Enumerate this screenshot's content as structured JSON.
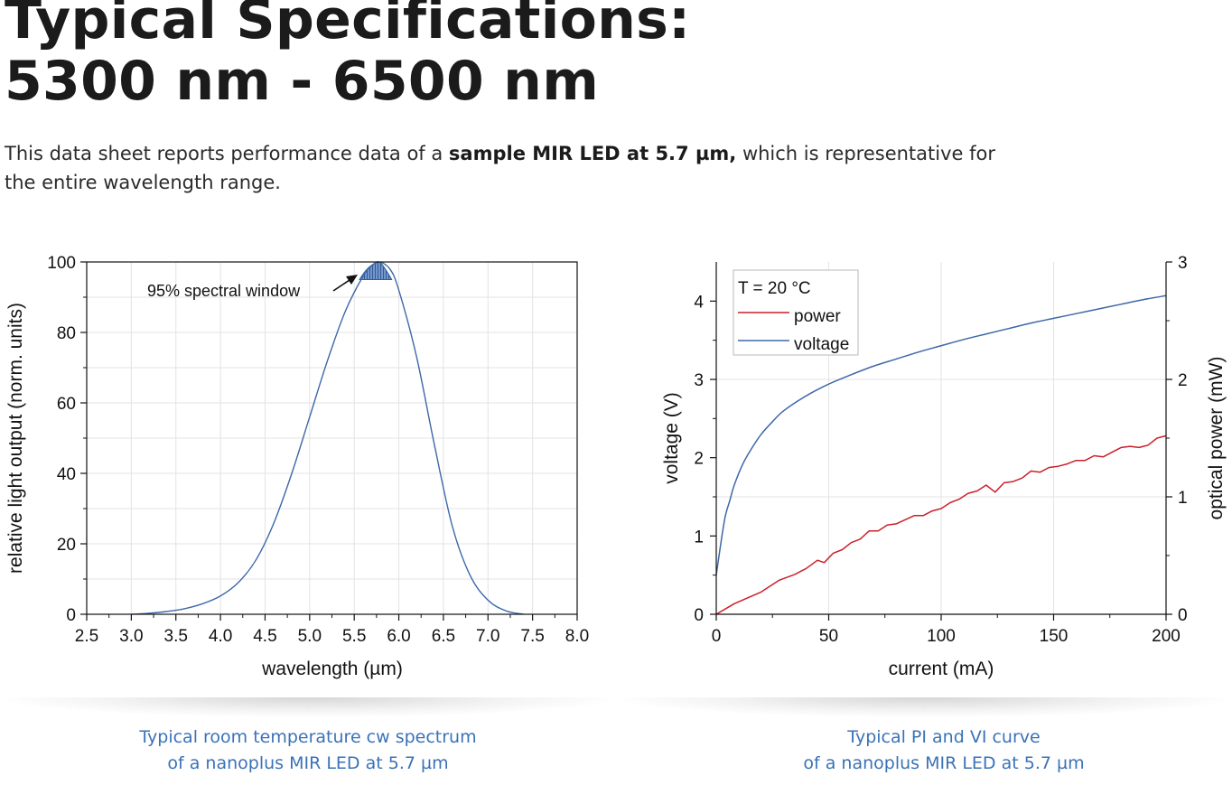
{
  "page": {
    "title_line1": "Typical Specifications:",
    "title_line2": "5300 nm - 6500 nm",
    "intro_before": "This data sheet reports performance data of a ",
    "intro_bold": "sample MIR LED at 5.7 µm,",
    "intro_after": " which is representative for the entire wavelength range."
  },
  "captions": [
    {
      "line1": "Typical room temperature cw spectrum",
      "line2": "of a nanoplus MIR LED at 5.7 µm"
    },
    {
      "line1": "Typical PI and VI curve",
      "line2": "of a nanoplus MIR LED at 5.7 µm"
    }
  ],
  "colors": {
    "accent": "#3a72b8",
    "spectrum": "#3d68a8",
    "power": "#cc1f2b",
    "voltage": "#3d68a8"
  },
  "chart_data": [
    {
      "type": "area",
      "xlabel": "wavelength (µm)",
      "ylabel": "relative light output (norm. units)",
      "xlim": [
        2.5,
        8.0
      ],
      "ylim": [
        0,
        100
      ],
      "xticks": [
        "2.5",
        "3.0",
        "3.5",
        "4.0",
        "4.5",
        "5.0",
        "5.5",
        "6.0",
        "6.5",
        "7.0",
        "7.5",
        "8.0"
      ],
      "yticks": [
        "0",
        "20",
        "40",
        "60",
        "80",
        "100"
      ],
      "grid": true,
      "annotation": "95% spectral window",
      "window": {
        "x_start": 5.56,
        "x_end": 5.92,
        "threshold": 95
      },
      "series": [
        {
          "x": [
            3.0,
            3.2,
            3.4,
            3.6,
            3.8,
            4.0,
            4.2,
            4.4,
            4.6,
            4.8,
            5.0,
            5.2,
            5.4,
            5.6,
            5.7,
            5.78,
            5.9,
            6.0,
            6.2,
            6.4,
            6.6,
            6.8,
            7.0,
            7.2,
            7.4
          ],
          "y": [
            0,
            0.3,
            0.8,
            1.6,
            3.0,
            5.2,
            9.0,
            15.5,
            26,
            40,
            56,
            72,
            86,
            96,
            99,
            100,
            98,
            92,
            73,
            48,
            25,
            11,
            4,
            1,
            0
          ]
        }
      ]
    },
    {
      "type": "line",
      "xlabel": "current (mA)",
      "ylabel": "voltage (V)",
      "y2label": "optical power (mW)",
      "xlim": [
        0,
        200
      ],
      "ylim": [
        0,
        4.5
      ],
      "y2lim": [
        0,
        3
      ],
      "xticks": [
        "0",
        "50",
        "100",
        "150",
        "200"
      ],
      "yticks": [
        "0",
        "1",
        "2",
        "3",
        "4"
      ],
      "y2ticks": [
        "0",
        "1",
        "2",
        "3"
      ],
      "grid": true,
      "legend_position": "top-left",
      "legend_title": "T = 20 °C",
      "series": [
        {
          "name": "power",
          "axis": "right",
          "x": [
            0,
            8,
            20,
            28,
            35,
            40,
            45,
            48,
            52,
            56,
            60,
            64,
            68,
            72,
            76,
            80,
            88,
            92,
            96,
            100,
            104,
            108,
            112,
            116,
            120,
            124,
            128,
            132,
            136,
            140,
            144,
            148,
            152,
            156,
            160,
            164,
            168,
            172,
            176,
            180,
            184,
            188,
            192,
            196,
            200
          ],
          "y": [
            0,
            0.09,
            0.19,
            0.29,
            0.34,
            0.39,
            0.46,
            0.44,
            0.52,
            0.55,
            0.61,
            0.64,
            0.71,
            0.71,
            0.76,
            0.77,
            0.84,
            0.84,
            0.88,
            0.9,
            0.95,
            0.98,
            1.03,
            1.05,
            1.1,
            1.04,
            1.12,
            1.13,
            1.16,
            1.22,
            1.21,
            1.25,
            1.26,
            1.28,
            1.31,
            1.31,
            1.35,
            1.34,
            1.38,
            1.42,
            1.43,
            1.42,
            1.44,
            1.5,
            1.52
          ]
        },
        {
          "name": "voltage",
          "axis": "left",
          "x": [
            0,
            2,
            4,
            6,
            8,
            12,
            16,
            20,
            25,
            30,
            40,
            50,
            60,
            70,
            80,
            90,
            100,
            110,
            120,
            130,
            140,
            150,
            160,
            170,
            180,
            190,
            200
          ],
          "y": [
            0.5,
            0.9,
            1.25,
            1.45,
            1.65,
            1.93,
            2.13,
            2.3,
            2.46,
            2.6,
            2.79,
            2.94,
            3.06,
            3.17,
            3.26,
            3.35,
            3.43,
            3.51,
            3.58,
            3.65,
            3.72,
            3.78,
            3.84,
            3.9,
            3.96,
            4.02,
            4.07
          ]
        }
      ]
    }
  ]
}
